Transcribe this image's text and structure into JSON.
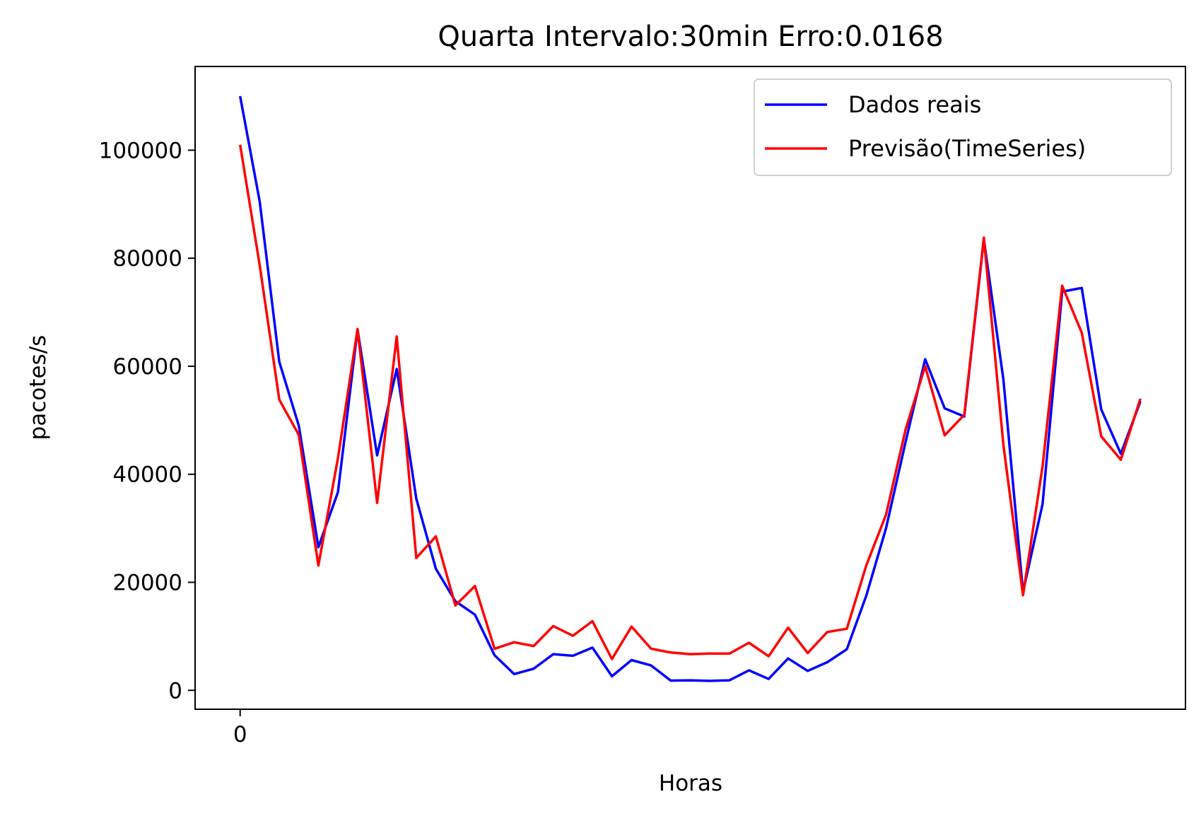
{
  "chart_data": {
    "type": "line",
    "title": "Quarta Intervalo:30min Erro:0.0168",
    "xlabel": "Horas",
    "ylabel": "pacotes/s",
    "x_ticks": [
      0
    ],
    "y_ticks": [
      0,
      20000,
      40000,
      60000,
      80000,
      100000
    ],
    "xlim": [
      -2.3,
      48.3
    ],
    "ylim": [
      -3500,
      115500
    ],
    "grid": false,
    "legend_position": "top-right",
    "x": [
      0,
      1,
      2,
      3,
      4,
      5,
      6,
      7,
      8,
      9,
      10,
      11,
      12,
      13,
      14,
      15,
      16,
      17,
      18,
      19,
      20,
      21,
      22,
      23,
      24,
      25,
      26,
      27,
      28,
      29,
      30,
      31,
      32,
      33,
      34,
      35,
      36,
      37,
      38,
      39,
      40,
      41,
      42,
      43,
      44,
      45,
      46
    ],
    "series": [
      {
        "name": "Dados reais",
        "color": "#0000ff",
        "values": [
          110000,
          90500,
          60800,
          49000,
          26500,
          36700,
          66800,
          43500,
          59500,
          35500,
          22500,
          16500,
          14000,
          6500,
          3000,
          4000,
          6700,
          6400,
          7900,
          2600,
          5600,
          4600,
          1800,
          1850,
          1750,
          1850,
          3700,
          2100,
          5900,
          3600,
          5200,
          7600,
          17600,
          30000,
          46000,
          61300,
          52200,
          50700,
          83500,
          57500,
          18200,
          34500,
          73800,
          74500,
          52000,
          43800,
          53500
        ]
      },
      {
        "name": "Previsão(TimeSeries)",
        "color": "#ff0000",
        "values": [
          101000,
          78700,
          53800,
          47300,
          23100,
          43000,
          66900,
          34700,
          65500,
          24500,
          28500,
          15700,
          19300,
          7700,
          8900,
          8200,
          11900,
          10100,
          12800,
          5800,
          11800,
          7700,
          7000,
          6700,
          6800,
          6800,
          8800,
          6300,
          11600,
          6900,
          10800,
          11400,
          23200,
          32500,
          48300,
          60000,
          47200,
          51000,
          83800,
          45400,
          17600,
          41500,
          74900,
          66200,
          47000,
          42700,
          54000
        ]
      }
    ]
  }
}
